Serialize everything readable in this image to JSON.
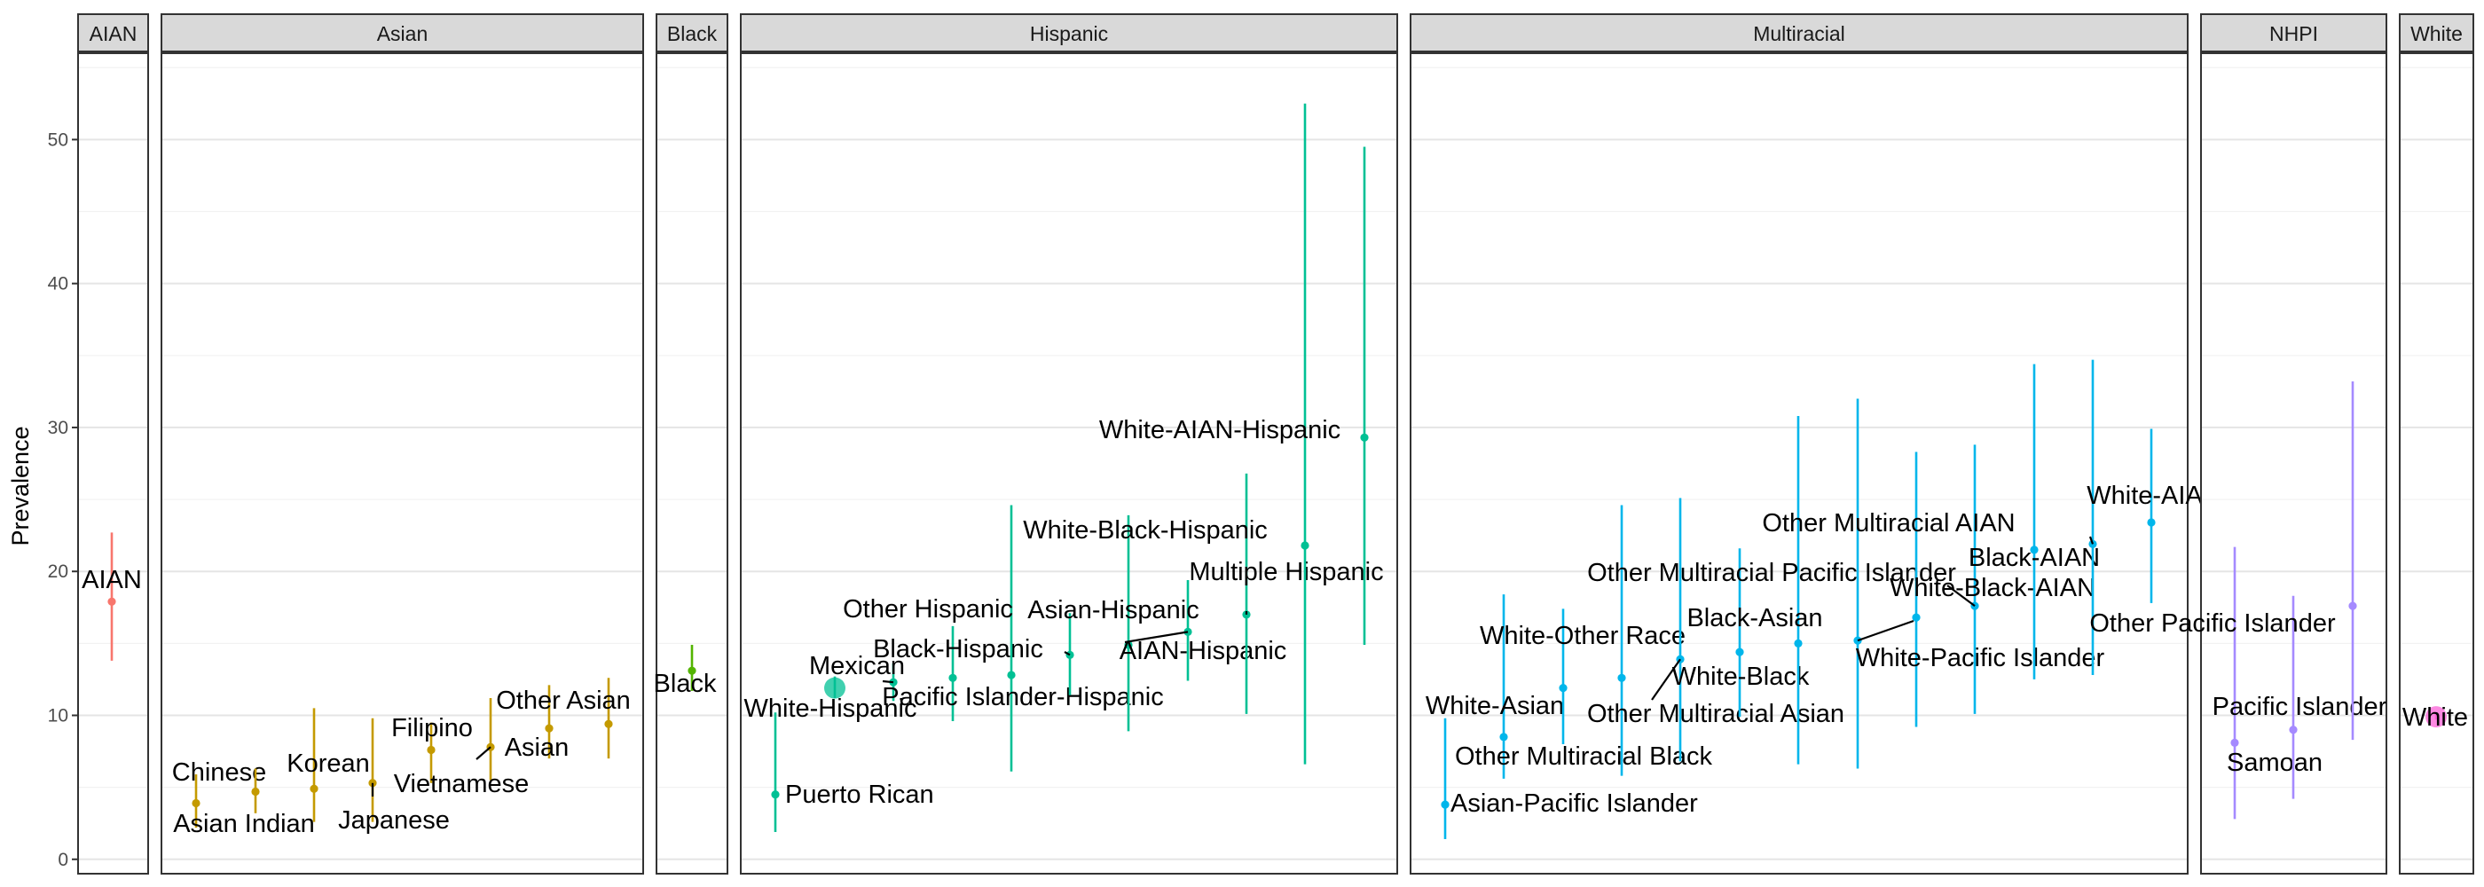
{
  "chart_data": {
    "type": "scatter",
    "subtype": "point-range faceted by group",
    "title": "",
    "xlabel": "",
    "ylabel": "Prevalence",
    "ylim": [
      -1,
      56
    ],
    "yticks": [
      0,
      10,
      20,
      30,
      40,
      50
    ],
    "grid": true,
    "legend": "none",
    "facets": [
      {
        "name": "AIAN",
        "color": "#F8766D",
        "points": [
          {
            "label": "AIAN",
            "y": 17.9,
            "lo": 13.8,
            "hi": 22.7
          }
        ]
      },
      {
        "name": "Asian",
        "color": "#C49A00",
        "points": [
          {
            "label": "Chinese",
            "y": 3.9,
            "lo": 2.2,
            "hi": 5.9
          },
          {
            "label": "Asian Indian",
            "y": 4.7,
            "lo": 3.2,
            "hi": 6.3
          },
          {
            "label": "Korean",
            "y": 4.9,
            "lo": 2.6,
            "hi": 10.5
          },
          {
            "label": "Japanese",
            "y": 5.3,
            "lo": 2.6,
            "hi": 9.8
          },
          {
            "label": "Filipino",
            "y": 7.6,
            "lo": 5.3,
            "hi": 9.5
          },
          {
            "label": "Vietnamese",
            "y": 7.8,
            "lo": 5.5,
            "hi": 11.2
          },
          {
            "label": "Asian",
            "y": 9.1,
            "lo": 7.0,
            "hi": 12.1
          },
          {
            "label": "Other Asian",
            "y": 9.4,
            "lo": 7.0,
            "hi": 12.6
          }
        ]
      },
      {
        "name": "Black",
        "color": "#53B400",
        "points": [
          {
            "label": "Black",
            "y": 13.1,
            "lo": 11.7,
            "hi": 14.9
          }
        ]
      },
      {
        "name": "Hispanic",
        "color": "#00C094",
        "points": [
          {
            "label": "Puerto Rican",
            "y": 4.5,
            "lo": 1.9,
            "hi": 10.2
          },
          {
            "label": "White-Hispanic",
            "y": 11.9,
            "lo": 11.2,
            "hi": 12.7
          },
          {
            "label": "Mexican",
            "y": 12.3,
            "lo": 11.0,
            "hi": 13.6
          },
          {
            "label": "Black-Hispanic",
            "y": 12.6,
            "lo": 9.6,
            "hi": 16.2
          },
          {
            "label": "Pacific Islander-Hispanic",
            "y": 12.8,
            "lo": 6.1,
            "hi": 24.6
          },
          {
            "label": "Other Hispanic",
            "y": 14.2,
            "lo": 11.4,
            "hi": 17.1
          },
          {
            "label": "AIAN-Hispanic",
            "y": 14.9,
            "lo": 8.9,
            "hi": 23.9
          },
          {
            "label": "Asian-Hispanic",
            "y": 15.8,
            "lo": 12.4,
            "hi": 19.4
          },
          {
            "label": "Multiple Hispanic",
            "y": 17.0,
            "lo": 10.1,
            "hi": 26.8
          },
          {
            "label": "White-Black-Hispanic",
            "y": 21.8,
            "lo": 6.6,
            "hi": 52.5
          },
          {
            "label": "White-AIAN-Hispanic",
            "y": 29.3,
            "lo": 14.9,
            "hi": 49.5
          }
        ]
      },
      {
        "name": "Multiracial",
        "color": "#00B6EB",
        "points": [
          {
            "label": "Asian-Pacific Islander",
            "y": 3.8,
            "lo": 1.4,
            "hi": 9.8
          },
          {
            "label": "White-Asian",
            "y": 8.5,
            "lo": 5.6,
            "hi": 18.4
          },
          {
            "label": "White-Other Race",
            "y": 11.9,
            "lo": 8.0,
            "hi": 17.4
          },
          {
            "label": "Other Multiracial Black",
            "y": 12.6,
            "lo": 5.8,
            "hi": 24.6
          },
          {
            "label": "Other Multiracial Asian",
            "y": 13.9,
            "lo": 6.8,
            "hi": 25.1
          },
          {
            "label": "White-Black",
            "y": 14.4,
            "lo": 9.9,
            "hi": 21.6
          },
          {
            "label": "Black-Asian",
            "y": 15.0,
            "lo": 6.6,
            "hi": 30.8
          },
          {
            "label": "Other Multiracial Pacific Islander",
            "y": 15.2,
            "lo": 6.3,
            "hi": 32.0
          },
          {
            "label": "White-Pacific Islander",
            "y": 16.8,
            "lo": 9.2,
            "hi": 28.3
          },
          {
            "label": "White-Black-AIAN",
            "y": 17.6,
            "lo": 10.1,
            "hi": 28.8
          },
          {
            "label": "Black-AIAN",
            "y": 21.5,
            "lo": 12.5,
            "hi": 34.4
          },
          {
            "label": "Other Multiracial AIAN",
            "y": 21.9,
            "lo": 12.8,
            "hi": 34.7
          },
          {
            "label": "White-AIAN",
            "y": 23.4,
            "lo": 17.8,
            "hi": 29.9
          }
        ]
      },
      {
        "name": "NHPI",
        "color": "#A58AFF",
        "points": [
          {
            "label": "Samoan",
            "y": 8.1,
            "lo": 2.8,
            "hi": 21.7
          },
          {
            "label": "Pacific Islander",
            "y": 9.0,
            "lo": 4.2,
            "hi": 18.3
          },
          {
            "label": "Other Pacific Islander",
            "y": 17.6,
            "lo": 8.3,
            "hi": 33.2
          }
        ]
      },
      {
        "name": "White",
        "color": "#FB61D7",
        "points": [
          {
            "label": "White",
            "y": 9.9,
            "lo": 9.7,
            "hi": 10.1
          }
        ]
      }
    ]
  }
}
